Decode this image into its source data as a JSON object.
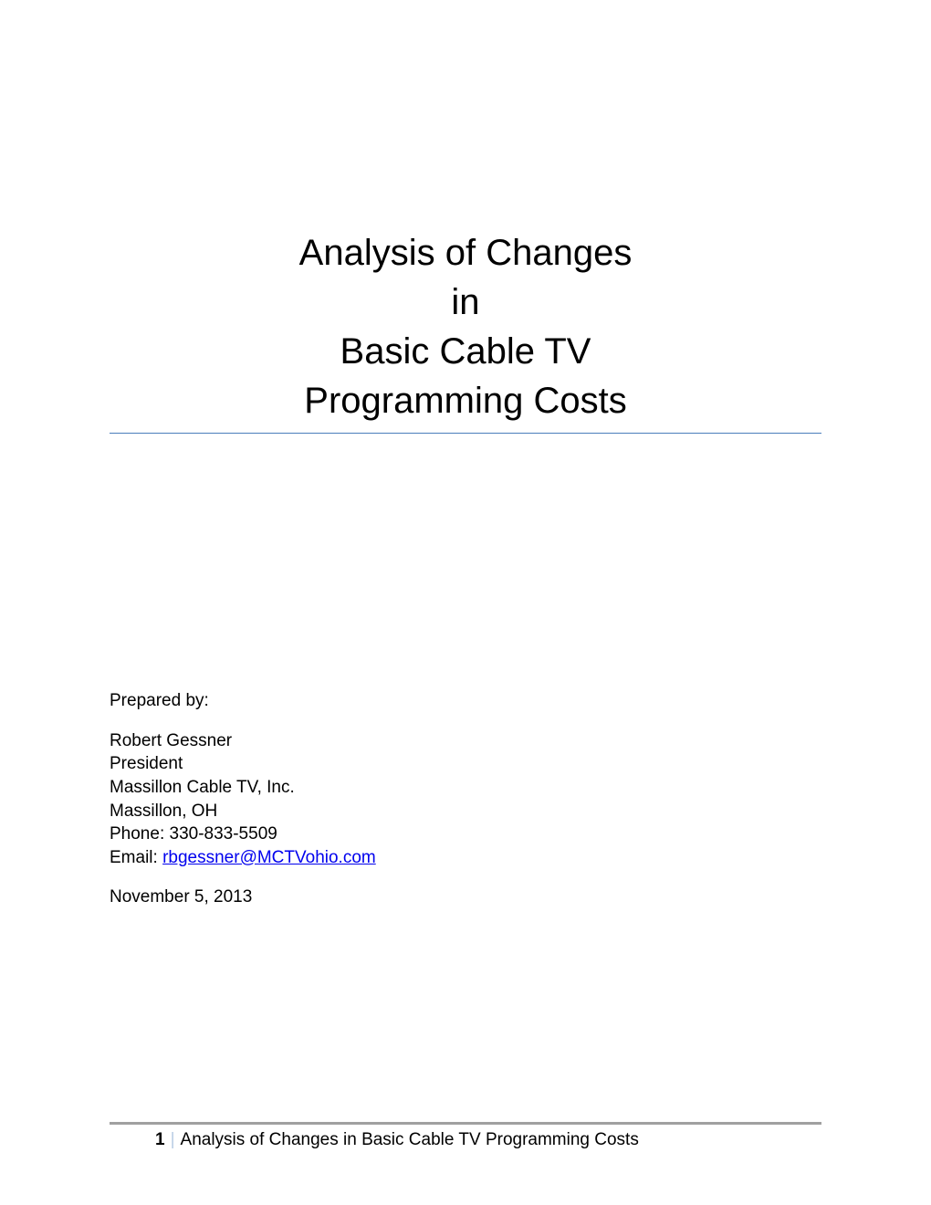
{
  "title": {
    "line1": "Analysis of Changes",
    "line2": "in",
    "line3": "Basic Cable TV",
    "line4": "Programming Costs"
  },
  "prepared": {
    "label": "Prepared by:",
    "name": "Robert Gessner",
    "position": "President",
    "company": "Massillon Cable TV, Inc.",
    "location": "Massillon, OH",
    "phone_label": "Phone: ",
    "phone_value": "330-833-5509",
    "email_label": "Email: ",
    "email_value": "rbgessner@MCTVohio.com"
  },
  "date": "November 5, 2013",
  "footer": {
    "page_number": "1",
    "footer_text": "Analysis of Changes in Basic Cable TV  Programming Costs"
  },
  "colors": {
    "text": "#000000",
    "link": "#0000ee",
    "divider_blue": "#4a7ebb",
    "footer_divider": "#a0a0a0",
    "footer_separator": "#b8cce4",
    "background": "#ffffff"
  },
  "typography": {
    "title_fontsize": 40,
    "body_fontsize": 19,
    "font_family": "Arial"
  }
}
